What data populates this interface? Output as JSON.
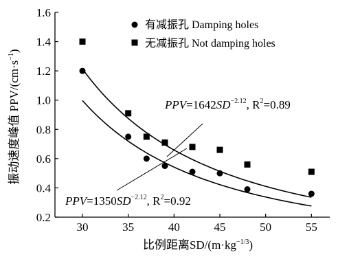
{
  "chart_data": {
    "type": "scatter",
    "xlabel": "比例距离SD/(m·kg",
    "xlabel_sup": "−1/3",
    "xlabel_end": ")",
    "ylabel": "振动速度峰值 PPV/(cm·s",
    "ylabel_sup": "−1",
    "ylabel_end": ")",
    "xlim": [
      27,
      57
    ],
    "ylim": [
      0.2,
      1.6
    ],
    "x_ticks": [
      30,
      35,
      40,
      45,
      50,
      55
    ],
    "x_tick_labels": [
      "30",
      "35",
      "40",
      "45",
      "50",
      "55"
    ],
    "y_ticks": [
      0.2,
      0.4,
      0.6,
      0.8,
      1.0,
      1.2,
      1.4,
      1.6
    ],
    "y_tick_labels": [
      "0.2",
      "0.4",
      "0.6",
      "0.8",
      "1.0",
      "1.2",
      "1.4",
      "1.6"
    ],
    "grid": false,
    "legend_position": "top-right",
    "series": [
      {
        "name": "有减振孔 Damping holes",
        "marker": "circle",
        "x": [
          30,
          35,
          37,
          39,
          42,
          45,
          48,
          55
        ],
        "y": [
          1.2,
          0.75,
          0.6,
          0.55,
          0.51,
          0.5,
          0.39,
          0.36
        ]
      },
      {
        "name": "无减振孔 Not damping holes",
        "marker": "square",
        "x": [
          30,
          35,
          37,
          39,
          42,
          45,
          48,
          55
        ],
        "y": [
          1.4,
          0.91,
          0.75,
          0.71,
          0.68,
          0.66,
          0.56,
          0.51
        ]
      }
    ],
    "fits": [
      {
        "series": 0,
        "coefficient": 1350,
        "exponent": -2.12,
        "x_range": [
          30,
          55
        ],
        "eq_prefix": "PPV",
        "eq_equals": "=1350",
        "eq_var": "SD",
        "eq_exp": "−2.12",
        "eq_r": ", R",
        "eq_r_sup": "2",
        "eq_r_val": "=0.92"
      },
      {
        "series": 1,
        "coefficient": 1642,
        "exponent": -2.12,
        "x_range": [
          30,
          55
        ],
        "eq_prefix": "PPV",
        "eq_equals": "=1642",
        "eq_var": "SD",
        "eq_exp": "−2.12",
        "eq_r": ", R",
        "eq_r_sup": "2",
        "eq_r_val": "=0.89"
      }
    ]
  }
}
